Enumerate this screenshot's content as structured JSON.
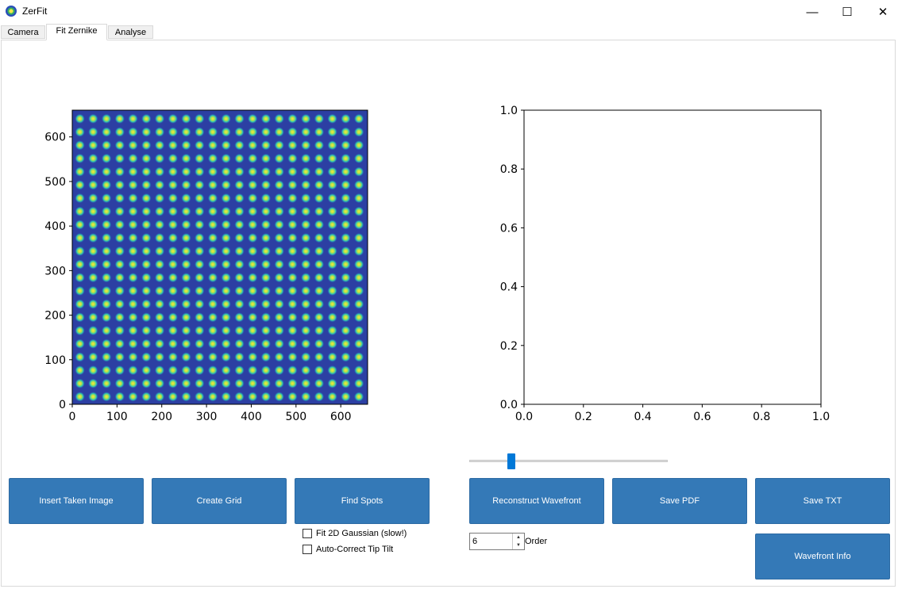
{
  "window": {
    "title": "ZerFit",
    "icon": "zerfit-app-icon",
    "controls": {
      "minimize": "—",
      "maximize": "☐",
      "close": "✕"
    }
  },
  "tabs": [
    {
      "label": "Camera",
      "active": false
    },
    {
      "label": "Fit Zernike",
      "active": true
    },
    {
      "label": "Analyse",
      "active": false
    }
  ],
  "image_plot": {
    "type": "heatmap",
    "x_ticks": [
      "0",
      "100",
      "200",
      "300",
      "400",
      "500",
      "600"
    ],
    "y_ticks": [
      "0",
      "100",
      "200",
      "300",
      "400",
      "500",
      "600"
    ],
    "xlim": [
      0,
      660
    ],
    "ylim": [
      0,
      660
    ],
    "spot_grid": {
      "columns": 22,
      "rows": 22,
      "first_center": 17,
      "spacing": 29.7
    },
    "colormap": {
      "background": "#2c3fa3",
      "spot_outer": "#2ec7b0",
      "spot_inner": "#f4ec3a"
    }
  },
  "chart_data": {
    "type": "line",
    "title": "",
    "xlabel": "",
    "ylabel": "",
    "xlim": [
      0.0,
      1.0
    ],
    "ylim": [
      0.0,
      1.0
    ],
    "x_ticks": [
      "0.0",
      "0.2",
      "0.4",
      "0.6",
      "0.8",
      "1.0"
    ],
    "y_ticks": [
      "0.0",
      "0.2",
      "0.4",
      "0.6",
      "0.8",
      "1.0"
    ],
    "series": []
  },
  "slider": {
    "value_fraction": 0.2
  },
  "buttons": {
    "insert": "Insert Taken Image",
    "create_grid": "Create Grid",
    "find_spots": "Find Spots",
    "reconstruct": "Reconstruct Wavefront",
    "save_pdf": "Save PDF",
    "save_txt": "Save TXT",
    "wavefront_info": "Wavefront Info"
  },
  "checkboxes": {
    "gaussian": {
      "label": "Fit 2D Gaussian (slow!)",
      "checked": false
    },
    "tip_tilt": {
      "label": "Auto-Correct Tip Tilt",
      "checked": false
    }
  },
  "order": {
    "value": "6",
    "label": "Order"
  },
  "colors": {
    "button_bg": "#3479b7",
    "slider_handle": "#0078d7"
  }
}
